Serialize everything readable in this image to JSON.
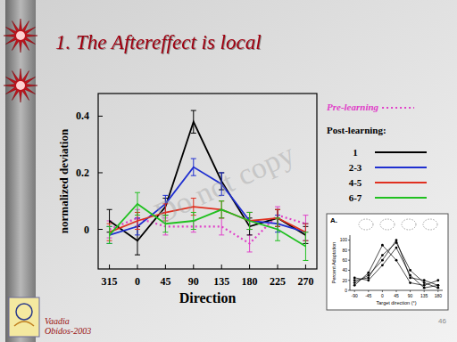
{
  "slide": {
    "title": "1. The Aftereffect is local",
    "watermark": "Do not copy",
    "footer": [
      "Vaadia",
      "Obidos-2003"
    ],
    "page": "46"
  },
  "chart_data": [
    {
      "type": "line",
      "xlabel": "Direction",
      "ylabel": "normalized deviation",
      "categories": [
        "315",
        "0",
        "45",
        "90",
        "135",
        "180",
        "225",
        "270"
      ],
      "ylim": [
        -0.14,
        0.48
      ],
      "yticks": [
        0,
        0.2,
        0.4
      ],
      "legend": "right",
      "legend_title": "Post-learning:",
      "series": [
        {
          "name": "Pre-learning",
          "color": "#e040c8",
          "line_style": "dotted",
          "values": [
            0.0,
            0.04,
            0.01,
            0.01,
            0.01,
            -0.05,
            0.05,
            0.02
          ],
          "errors": [
            0.03,
            0.03,
            0.03,
            0.02,
            0.03,
            0.03,
            0.03,
            0.03
          ]
        },
        {
          "name": "1",
          "color": "#000000",
          "line_style": "solid",
          "values": [
            0.03,
            -0.04,
            0.08,
            0.38,
            0.17,
            0.01,
            0.04,
            -0.02
          ],
          "errors": [
            0.04,
            0.05,
            0.03,
            0.04,
            0.03,
            0.03,
            0.03,
            0.03
          ]
        },
        {
          "name": "2-3",
          "color": "#1f2fd0",
          "line_style": "solid",
          "values": [
            -0.02,
            0.01,
            0.09,
            0.22,
            0.16,
            0.03,
            0.02,
            -0.01
          ],
          "errors": [
            0.03,
            0.03,
            0.03,
            0.03,
            0.04,
            0.03,
            0.03,
            0.03
          ]
        },
        {
          "name": "4-5",
          "color": "#e03020",
          "line_style": "solid",
          "values": [
            -0.01,
            0.03,
            0.06,
            0.08,
            0.07,
            0.03,
            0.04,
            -0.01
          ],
          "errors": [
            0.03,
            0.03,
            0.03,
            0.03,
            0.03,
            0.03,
            0.03,
            0.03
          ]
        },
        {
          "name": "6-7",
          "color": "#20c020",
          "line_style": "solid",
          "values": [
            -0.02,
            0.09,
            0.02,
            0.03,
            0.07,
            0.03,
            0.0,
            -0.06
          ],
          "errors": [
            0.03,
            0.04,
            0.03,
            0.03,
            0.03,
            0.03,
            0.04,
            0.05
          ]
        }
      ]
    },
    {
      "type": "line",
      "title": "A.",
      "xlabel": "Target direction (°)",
      "ylabel": "Percent Adaptation",
      "x": [
        -90,
        -45,
        0,
        45,
        90,
        135,
        180
      ],
      "xlim": [
        -105,
        195
      ],
      "xticks": [
        -90,
        -45,
        0,
        45,
        90,
        135,
        180
      ],
      "ylim": [
        0,
        110
      ],
      "yticks": [
        0,
        20,
        40,
        60,
        80,
        100
      ],
      "marker": "circle",
      "series": [
        {
          "color": "#000000",
          "values": [
            15,
            30,
            60,
            100,
            25,
            20,
            10
          ]
        },
        {
          "color": "#000000",
          "values": [
            20,
            25,
            70,
            95,
            40,
            15,
            5
          ]
        },
        {
          "color": "#000000",
          "values": [
            10,
            35,
            90,
            60,
            15,
            10,
            20
          ]
        },
        {
          "color": "#000000",
          "values": [
            25,
            20,
            50,
            85,
            30,
            5,
            10
          ]
        }
      ]
    }
  ]
}
